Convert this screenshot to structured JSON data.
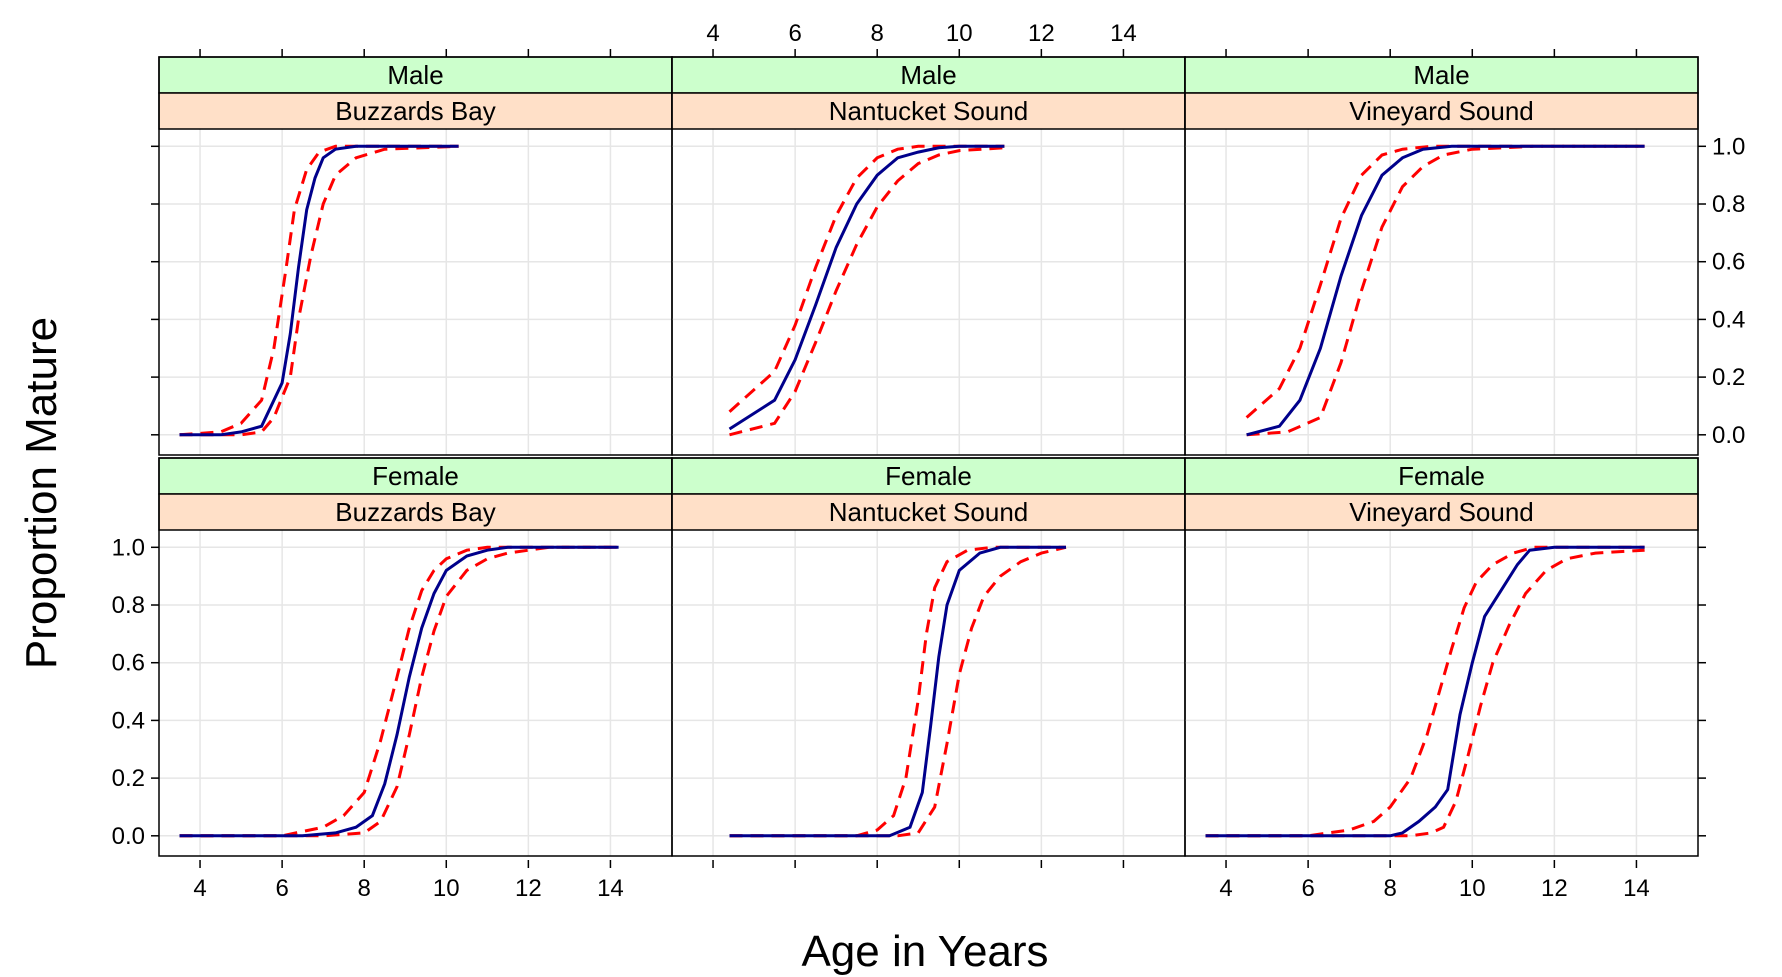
{
  "chart_data": {
    "type": "line",
    "xlabel": "Age in Years",
    "ylabel": "Proportion Mature",
    "xlim": [
      3,
      15.5
    ],
    "ylim": [
      -0.07,
      1.06
    ],
    "x_ticks": [
      4,
      6,
      8,
      10,
      12,
      14
    ],
    "y_ticks": [
      0.0,
      0.2,
      0.4,
      0.6,
      0.8,
      1.0
    ],
    "y_tick_labels": [
      "0.0",
      "0.2",
      "0.4",
      "0.6",
      "0.8",
      "1.0"
    ],
    "grid": true,
    "strip_colors": {
      "sex": "#ccffcc",
      "region": "#ffe0c8"
    },
    "series_colors": {
      "fit": "#00008b",
      "ci": "#ff0000"
    },
    "panels": [
      {
        "sex": "Male",
        "region": "Buzzards Bay",
        "row": 0,
        "col": 0,
        "fit": [
          [
            3.5,
            0.0
          ],
          [
            4.5,
            0.0
          ],
          [
            5.0,
            0.01
          ],
          [
            5.5,
            0.03
          ],
          [
            6.0,
            0.18
          ],
          [
            6.2,
            0.35
          ],
          [
            6.4,
            0.58
          ],
          [
            6.6,
            0.78
          ],
          [
            6.8,
            0.89
          ],
          [
            7.0,
            0.96
          ],
          [
            7.3,
            0.99
          ],
          [
            7.8,
            1.0
          ],
          [
            10.3,
            1.0
          ]
        ],
        "lower": [
          [
            3.5,
            0.0
          ],
          [
            5.0,
            0.0
          ],
          [
            5.5,
            0.01
          ],
          [
            5.8,
            0.06
          ],
          [
            6.2,
            0.2
          ],
          [
            6.4,
            0.4
          ],
          [
            6.7,
            0.62
          ],
          [
            7.0,
            0.8
          ],
          [
            7.3,
            0.9
          ],
          [
            7.8,
            0.96
          ],
          [
            8.5,
            0.99
          ],
          [
            10.3,
            1.0
          ]
        ],
        "upper": [
          [
            3.5,
            0.0
          ],
          [
            4.5,
            0.01
          ],
          [
            5.0,
            0.04
          ],
          [
            5.5,
            0.12
          ],
          [
            5.8,
            0.3
          ],
          [
            6.1,
            0.58
          ],
          [
            6.3,
            0.78
          ],
          [
            6.6,
            0.92
          ],
          [
            6.9,
            0.98
          ],
          [
            7.3,
            1.0
          ],
          [
            10.3,
            1.0
          ]
        ]
      },
      {
        "sex": "Male",
        "region": "Nantucket Sound",
        "row": 0,
        "col": 1,
        "fit": [
          [
            4.4,
            0.02
          ],
          [
            5.5,
            0.12
          ],
          [
            6.0,
            0.26
          ],
          [
            6.5,
            0.45
          ],
          [
            7.0,
            0.65
          ],
          [
            7.5,
            0.8
          ],
          [
            8.0,
            0.9
          ],
          [
            8.5,
            0.96
          ],
          [
            9.0,
            0.98
          ],
          [
            9.5,
            0.995
          ],
          [
            10.0,
            1.0
          ],
          [
            11.1,
            1.0
          ]
        ],
        "lower": [
          [
            4.4,
            0.0
          ],
          [
            5.5,
            0.04
          ],
          [
            6.0,
            0.15
          ],
          [
            6.5,
            0.32
          ],
          [
            7.0,
            0.5
          ],
          [
            7.5,
            0.66
          ],
          [
            8.0,
            0.79
          ],
          [
            8.5,
            0.88
          ],
          [
            9.0,
            0.94
          ],
          [
            9.5,
            0.97
          ],
          [
            10.0,
            0.985
          ],
          [
            11.1,
            0.995
          ]
        ],
        "upper": [
          [
            4.4,
            0.08
          ],
          [
            5.5,
            0.22
          ],
          [
            6.0,
            0.38
          ],
          [
            6.5,
            0.58
          ],
          [
            7.0,
            0.76
          ],
          [
            7.5,
            0.89
          ],
          [
            8.0,
            0.96
          ],
          [
            8.5,
            0.99
          ],
          [
            9.0,
            1.0
          ],
          [
            11.1,
            1.0
          ]
        ]
      },
      {
        "sex": "Male",
        "region": "Vineyard Sound",
        "row": 0,
        "col": 2,
        "fit": [
          [
            4.5,
            0.0
          ],
          [
            5.3,
            0.03
          ],
          [
            5.8,
            0.12
          ],
          [
            6.3,
            0.3
          ],
          [
            6.8,
            0.55
          ],
          [
            7.3,
            0.76
          ],
          [
            7.8,
            0.9
          ],
          [
            8.3,
            0.96
          ],
          [
            8.8,
            0.99
          ],
          [
            9.5,
            1.0
          ],
          [
            14.2,
            1.0
          ]
        ],
        "lower": [
          [
            4.5,
            0.0
          ],
          [
            5.5,
            0.01
          ],
          [
            6.3,
            0.06
          ],
          [
            6.8,
            0.25
          ],
          [
            7.3,
            0.5
          ],
          [
            7.8,
            0.72
          ],
          [
            8.3,
            0.86
          ],
          [
            8.8,
            0.93
          ],
          [
            9.3,
            0.97
          ],
          [
            10.0,
            0.99
          ],
          [
            11.5,
            1.0
          ],
          [
            14.2,
            1.0
          ]
        ],
        "upper": [
          [
            4.5,
            0.06
          ],
          [
            5.3,
            0.16
          ],
          [
            5.8,
            0.3
          ],
          [
            6.3,
            0.52
          ],
          [
            6.8,
            0.75
          ],
          [
            7.3,
            0.9
          ],
          [
            7.8,
            0.97
          ],
          [
            8.3,
            0.99
          ],
          [
            9.0,
            1.0
          ],
          [
            14.2,
            1.0
          ]
        ]
      },
      {
        "sex": "Female",
        "region": "Buzzards Bay",
        "row": 1,
        "col": 0,
        "fit": [
          [
            3.5,
            0.0
          ],
          [
            6.5,
            0.0
          ],
          [
            7.3,
            0.01
          ],
          [
            7.8,
            0.03
          ],
          [
            8.2,
            0.07
          ],
          [
            8.5,
            0.18
          ],
          [
            8.8,
            0.35
          ],
          [
            9.1,
            0.55
          ],
          [
            9.4,
            0.72
          ],
          [
            9.7,
            0.84
          ],
          [
            10.0,
            0.92
          ],
          [
            10.5,
            0.97
          ],
          [
            11.0,
            0.99
          ],
          [
            11.5,
            1.0
          ],
          [
            14.2,
            1.0
          ]
        ],
        "lower": [
          [
            3.5,
            0.0
          ],
          [
            7.0,
            0.0
          ],
          [
            8.0,
            0.01
          ],
          [
            8.4,
            0.05
          ],
          [
            8.8,
            0.17
          ],
          [
            9.1,
            0.35
          ],
          [
            9.4,
            0.55
          ],
          [
            9.7,
            0.71
          ],
          [
            10.0,
            0.83
          ],
          [
            10.5,
            0.92
          ],
          [
            11.0,
            0.96
          ],
          [
            11.5,
            0.98
          ],
          [
            12.0,
            0.99
          ],
          [
            12.5,
            1.0
          ],
          [
            14.2,
            1.0
          ]
        ],
        "upper": [
          [
            3.5,
            0.0
          ],
          [
            6.0,
            0.0
          ],
          [
            7.0,
            0.03
          ],
          [
            7.5,
            0.07
          ],
          [
            8.0,
            0.15
          ],
          [
            8.4,
            0.33
          ],
          [
            8.8,
            0.55
          ],
          [
            9.1,
            0.72
          ],
          [
            9.4,
            0.85
          ],
          [
            9.7,
            0.92
          ],
          [
            10.0,
            0.96
          ],
          [
            10.5,
            0.99
          ],
          [
            11.0,
            1.0
          ],
          [
            14.2,
            1.0
          ]
        ]
      },
      {
        "sex": "Female",
        "region": "Nantucket Sound",
        "row": 1,
        "col": 1,
        "fit": [
          [
            4.4,
            0.0
          ],
          [
            8.3,
            0.0
          ],
          [
            8.8,
            0.03
          ],
          [
            9.1,
            0.15
          ],
          [
            9.3,
            0.38
          ],
          [
            9.5,
            0.62
          ],
          [
            9.7,
            0.8
          ],
          [
            10.0,
            0.92
          ],
          [
            10.5,
            0.98
          ],
          [
            11.0,
            1.0
          ],
          [
            12.5,
            1.0
          ],
          [
            12.6,
            1.0
          ]
        ],
        "lower": [
          [
            4.4,
            0.0
          ],
          [
            8.5,
            0.0
          ],
          [
            9.0,
            0.01
          ],
          [
            9.4,
            0.1
          ],
          [
            9.7,
            0.32
          ],
          [
            10.0,
            0.56
          ],
          [
            10.3,
            0.72
          ],
          [
            10.6,
            0.83
          ],
          [
            11.0,
            0.9
          ],
          [
            11.5,
            0.95
          ],
          [
            12.0,
            0.98
          ],
          [
            12.6,
            1.0
          ]
        ],
        "upper": [
          [
            4.4,
            0.0
          ],
          [
            7.5,
            0.0
          ],
          [
            8.0,
            0.02
          ],
          [
            8.4,
            0.07
          ],
          [
            8.7,
            0.2
          ],
          [
            9.0,
            0.47
          ],
          [
            9.2,
            0.7
          ],
          [
            9.4,
            0.86
          ],
          [
            9.7,
            0.95
          ],
          [
            10.2,
            0.99
          ],
          [
            10.8,
            1.0
          ],
          [
            12.6,
            1.0
          ]
        ]
      },
      {
        "sex": "Female",
        "region": "Vineyard Sound",
        "row": 1,
        "col": 2,
        "fit": [
          [
            3.5,
            0.0
          ],
          [
            8.0,
            0.0
          ],
          [
            8.3,
            0.01
          ],
          [
            8.7,
            0.05
          ],
          [
            9.1,
            0.1
          ],
          [
            9.4,
            0.16
          ],
          [
            9.7,
            0.42
          ],
          [
            10.0,
            0.6
          ],
          [
            10.3,
            0.76
          ],
          [
            10.7,
            0.85
          ],
          [
            11.1,
            0.94
          ],
          [
            11.4,
            0.99
          ],
          [
            12.0,
            1.0
          ],
          [
            14.2,
            1.0
          ]
        ],
        "lower": [
          [
            3.5,
            0.0
          ],
          [
            8.5,
            0.0
          ],
          [
            9.0,
            0.01
          ],
          [
            9.3,
            0.03
          ],
          [
            9.6,
            0.12
          ],
          [
            9.9,
            0.28
          ],
          [
            10.2,
            0.45
          ],
          [
            10.5,
            0.6
          ],
          [
            10.9,
            0.73
          ],
          [
            11.3,
            0.84
          ],
          [
            11.8,
            0.92
          ],
          [
            12.3,
            0.96
          ],
          [
            13.0,
            0.98
          ],
          [
            14.2,
            0.99
          ]
        ],
        "upper": [
          [
            3.5,
            0.0
          ],
          [
            6.0,
            0.0
          ],
          [
            7.0,
            0.02
          ],
          [
            7.6,
            0.05
          ],
          [
            8.0,
            0.1
          ],
          [
            8.5,
            0.2
          ],
          [
            8.9,
            0.35
          ],
          [
            9.2,
            0.5
          ],
          [
            9.5,
            0.65
          ],
          [
            9.8,
            0.79
          ],
          [
            10.1,
            0.88
          ],
          [
            10.5,
            0.94
          ],
          [
            11.0,
            0.98
          ],
          [
            11.5,
            1.0
          ],
          [
            14.2,
            1.0
          ]
        ]
      }
    ]
  }
}
